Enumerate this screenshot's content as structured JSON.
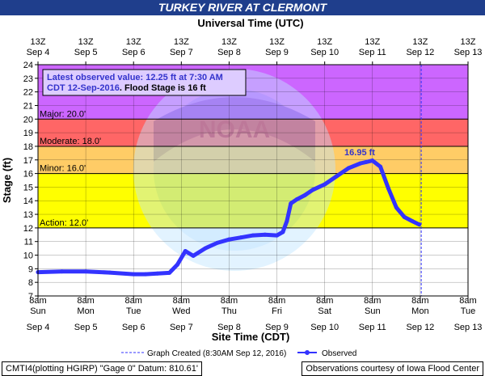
{
  "title": "TURKEY RIVER AT CLERMONT",
  "footer": {
    "left": "CMTI4(plotting HGIRP) \"Gage 0\" Datum: 810.61'",
    "right": "Observations courtesy of Iowa Flood Center"
  },
  "chart_data": {
    "type": "line",
    "top_axis_label": "Universal Time (UTC)",
    "top_tick_hour": "13Z",
    "top_tick_dates": [
      "Sep 4",
      "Sep 5",
      "Sep 6",
      "Sep 7",
      "Sep 8",
      "Sep 9",
      "Sep 10",
      "Sep 11",
      "Sep 12",
      "Sep 13"
    ],
    "xlabel": "Site Time (CDT)",
    "ylabel": "Stage (ft)",
    "bottom_tick_hour": "8am",
    "bottom_tick_days": [
      "Sun",
      "Mon",
      "Tue",
      "Wed",
      "Thu",
      "Fri",
      "Sat",
      "Sun",
      "Mon",
      "Tue"
    ],
    "bottom_tick_dates": [
      "Sep 4",
      "Sep 5",
      "Sep 6",
      "Sep 7",
      "Sep 8",
      "Sep 9",
      "Sep 10",
      "Sep 11",
      "Sep 12",
      "Sep 13"
    ],
    "x_range": [
      "2016-09-04 08:00 CDT",
      "2016-09-13 08:00 CDT"
    ],
    "ylim": [
      7,
      24
    ],
    "yticks": [
      7,
      8,
      9,
      10,
      11,
      12,
      13,
      14,
      15,
      16,
      17,
      18,
      19,
      20,
      21,
      22,
      23,
      24
    ],
    "grid": true,
    "flood_categories": [
      {
        "name": "Action",
        "label": "Action: 12.0'",
        "value": 12.0,
        "color": "#ffff00"
      },
      {
        "name": "Minor",
        "label": "Minor: 16.0'",
        "value": 16.0,
        "color": "#ffcc66"
      },
      {
        "name": "Moderate",
        "label": "Moderate: 18.0'",
        "value": 18.0,
        "color": "#ff6666"
      },
      {
        "name": "Major",
        "label": "Major: 20.0'",
        "value": 20.0,
        "color": "#cc66ff"
      }
    ],
    "info_box": {
      "line1": "Latest observed value: 12.25 ft at 7:30 AM",
      "line2a": "CDT 12-Sep-2016",
      "line2b": ". Flood Stage is 16 ft"
    },
    "crest_label": "16.95 ft",
    "legend": {
      "created": "Graph Created (8:30AM Sep 12, 2016)",
      "observed": "Observed"
    },
    "series": [
      {
        "name": "Observed",
        "color": "#3333ff",
        "x": [
          "2016-09-04 08:00",
          "2016-09-04 20:00",
          "2016-09-05 08:00",
          "2016-09-05 20:00",
          "2016-09-06 08:00",
          "2016-09-06 14:00",
          "2016-09-06 20:00",
          "2016-09-07 02:00",
          "2016-09-07 06:00",
          "2016-09-07 10:00",
          "2016-09-07 14:00",
          "2016-09-07 20:00",
          "2016-09-08 02:00",
          "2016-09-08 08:00",
          "2016-09-08 14:00",
          "2016-09-08 20:00",
          "2016-09-09 02:00",
          "2016-09-09 08:00",
          "2016-09-09 11:00",
          "2016-09-09 13:00",
          "2016-09-09 15:00",
          "2016-09-09 18:00",
          "2016-09-09 22:00",
          "2016-09-10 02:00",
          "2016-09-10 08:00",
          "2016-09-10 14:00",
          "2016-09-10 20:00",
          "2016-09-11 02:00",
          "2016-09-11 05:00",
          "2016-09-11 08:00",
          "2016-09-11 12:00",
          "2016-09-11 16:00",
          "2016-09-11 20:00",
          "2016-09-12 00:00",
          "2016-09-12 04:00",
          "2016-09-12 07:30"
        ],
        "y": [
          8.75,
          8.8,
          8.8,
          8.72,
          8.6,
          8.6,
          8.65,
          8.7,
          9.3,
          10.3,
          9.95,
          10.5,
          10.9,
          11.15,
          11.3,
          11.45,
          11.5,
          11.45,
          11.7,
          12.5,
          13.8,
          14.1,
          14.4,
          14.8,
          15.2,
          15.8,
          16.4,
          16.75,
          16.85,
          16.95,
          16.5,
          14.9,
          13.5,
          12.8,
          12.5,
          12.25
        ]
      }
    ]
  }
}
